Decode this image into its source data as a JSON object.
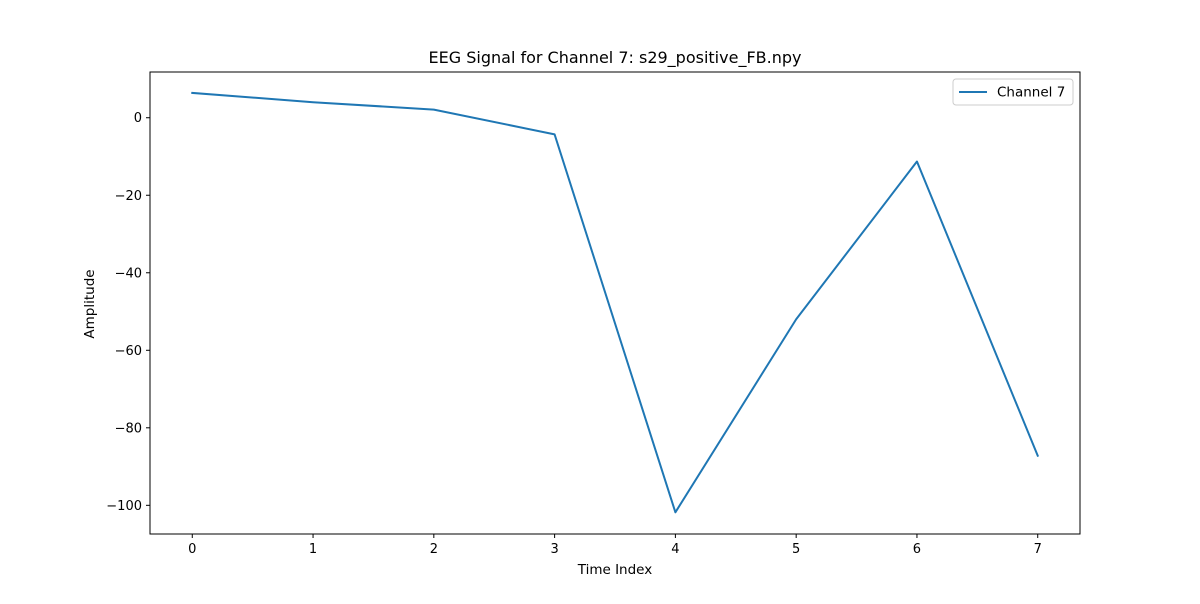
{
  "chart_data": {
    "type": "line",
    "title": "EEG Signal for Channel 7: s29_positive_FB.npy",
    "xlabel": "Time Index",
    "ylabel": "Amplitude",
    "xlim": [
      -0.35,
      7.35
    ],
    "ylim": [
      -107.4,
      11.8
    ],
    "xticks": [
      0,
      1,
      2,
      3,
      4,
      5,
      6,
      7
    ],
    "yticks": [
      0,
      -20,
      -40,
      -60,
      -80,
      -100
    ],
    "grid": false,
    "legend_position": "top-right",
    "series": [
      {
        "name": "Channel 7",
        "color": "#1f77b4",
        "x": [
          0,
          1,
          2,
          3,
          4,
          5,
          6,
          7
        ],
        "y": [
          6.4,
          4.0,
          2.1,
          -4.3,
          -101.8,
          -52.0,
          -11.3,
          -87.2
        ]
      }
    ]
  }
}
